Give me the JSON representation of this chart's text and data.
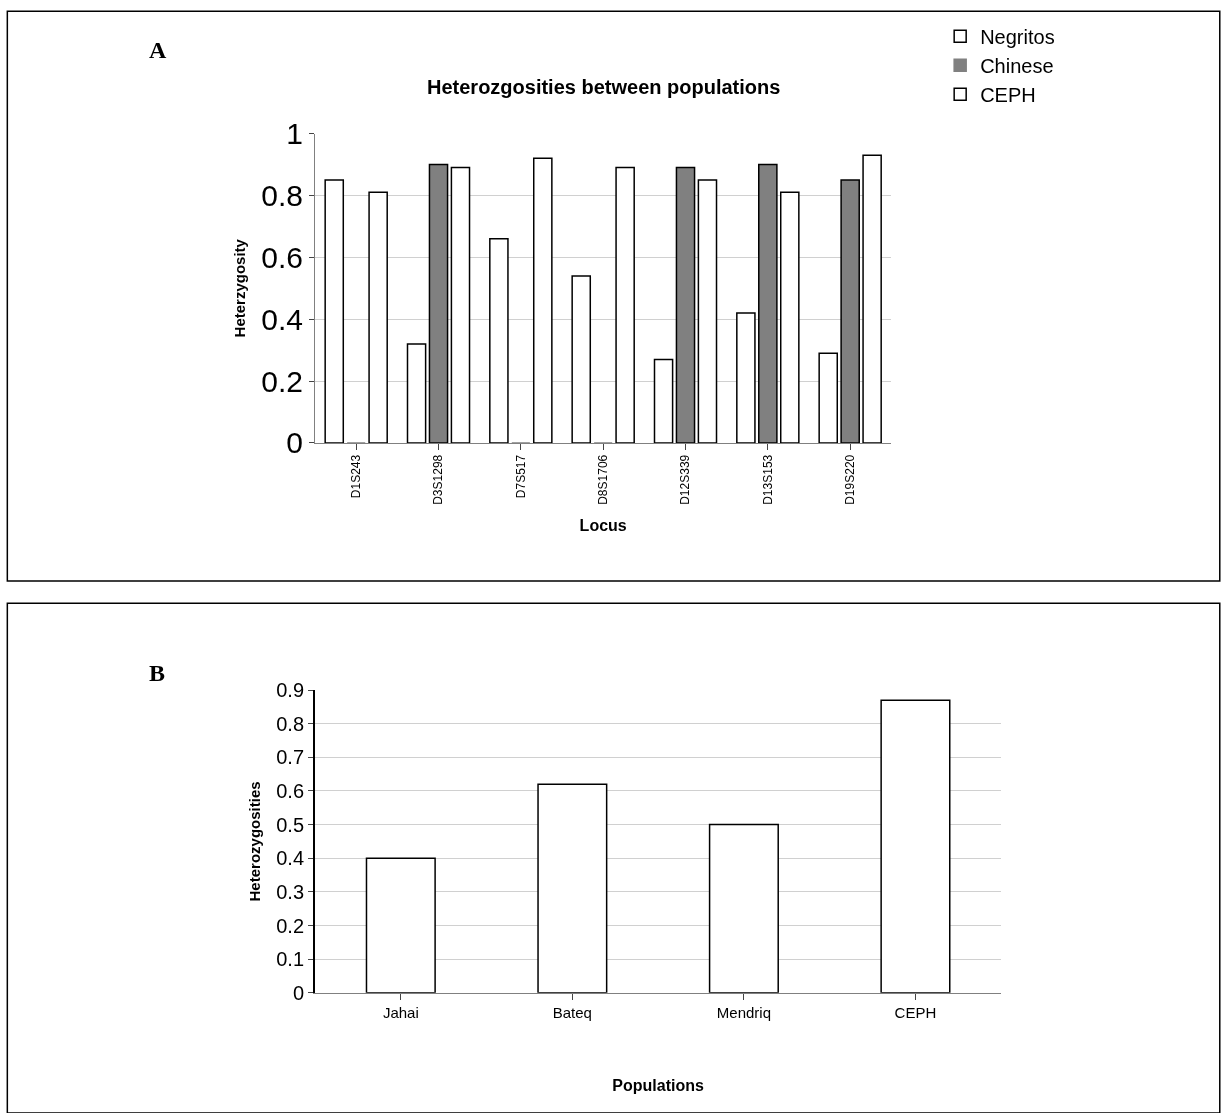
{
  "chart_data": [
    {
      "type": "bar",
      "title": "Heterozgosities between populations",
      "xlabel": "Locus",
      "ylabel": "Heterzygosity",
      "annotations": [
        "A"
      ],
      "categories": [
        "D1S243",
        "D3S1298",
        "D7S517",
        "D8S1706",
        "D12S339",
        "D13S153",
        "D19S220"
      ],
      "series": [
        {
          "name": "Negritos",
          "color": "#ffffff",
          "values": [
            0.85,
            0.32,
            0.66,
            0.54,
            0.27,
            0.42,
            0.29
          ]
        },
        {
          "name": "Chinese",
          "color": "#808080",
          "values": [
            0,
            0.9,
            0,
            0,
            0.89,
            0.9,
            0.85
          ]
        },
        {
          "name": "CEPH",
          "color": "#ffffff",
          "values": [
            0.81,
            0.89,
            0.92,
            0.89,
            0.85,
            0.81,
            0.93
          ]
        }
      ],
      "ylim": [
        0,
        1
      ],
      "yticks": [
        0,
        0.2,
        0.4,
        0.6,
        0.8,
        1
      ],
      "grid": "y",
      "legend": "top right"
    },
    {
      "type": "bar",
      "xlabel": "Populations",
      "ylabel": "Heterozygosities",
      "annotations": [
        "B"
      ],
      "categories": [
        "Jahai",
        "Bateq",
        "Mendriq",
        "CEPH"
      ],
      "series": [
        {
          "color": "#ffffff",
          "values": [
            0.4,
            0.62,
            0.5,
            0.87
          ]
        }
      ],
      "ylim": [
        0,
        0.9
      ],
      "yticks": [
        0,
        0.1,
        0.2,
        0.3,
        0.4,
        0.5,
        0.6,
        0.7,
        0.8,
        0.9
      ],
      "grid": "y",
      "legend": false
    }
  ]
}
